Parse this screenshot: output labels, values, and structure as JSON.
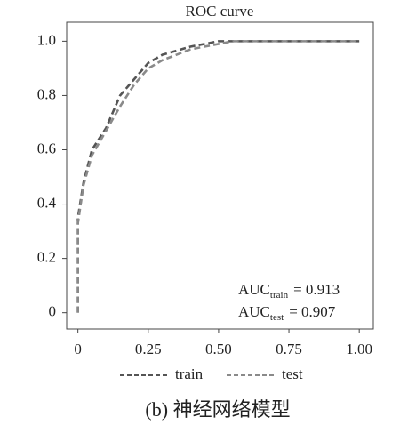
{
  "chart_data": {
    "type": "line",
    "title": "ROC curve",
    "series": [
      {
        "name": "train",
        "color": "#555555",
        "x": [
          0,
          0,
          0.02,
          0.05,
          0.1,
          0.15,
          0.2,
          0.25,
          0.3,
          0.4,
          0.5,
          0.6,
          1.0
        ],
        "values": [
          0,
          0.35,
          0.48,
          0.6,
          0.68,
          0.8,
          0.86,
          0.92,
          0.95,
          0.98,
          1.0,
          1.0,
          1.0
        ]
      },
      {
        "name": "test",
        "color": "#8a8a8a",
        "x": [
          0,
          0,
          0.02,
          0.05,
          0.1,
          0.15,
          0.2,
          0.25,
          0.3,
          0.4,
          0.5,
          0.55,
          1.0
        ],
        "values": [
          0,
          0.33,
          0.47,
          0.58,
          0.67,
          0.76,
          0.84,
          0.9,
          0.93,
          0.97,
          0.99,
          1.0,
          1.0
        ]
      }
    ],
    "xlim": [
      -0.04,
      1.05
    ],
    "ylim": [
      -0.06,
      1.07
    ],
    "xticks": [
      0,
      0.25,
      {
        "value": 0.5,
        "label": "0.50"
      },
      0.75,
      {
        "value": 1.0,
        "label": "1.00"
      }
    ],
    "yticks": [
      0,
      0.2,
      0.4,
      0.6,
      0.8,
      {
        "value": 1.0,
        "label": "1.0"
      }
    ],
    "annotations": [
      {
        "main": "AUC",
        "sub": "train",
        "text": "= 0.913"
      },
      {
        "main": "AUC",
        "sub": "test",
        "text": "= 0.907"
      }
    ],
    "caption": "(b) 神经网络模型"
  }
}
